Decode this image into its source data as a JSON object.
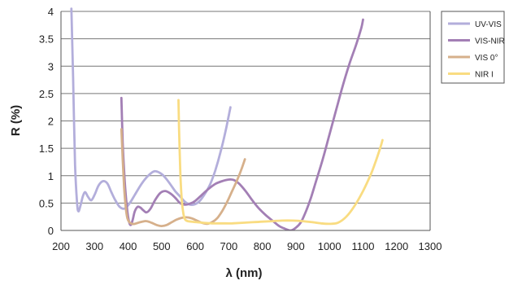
{
  "chart_data": {
    "type": "line",
    "title": "",
    "xlabel": "λ (nm)",
    "ylabel": "R (%)",
    "xlim": [
      200,
      1300
    ],
    "ylim": [
      0,
      4
    ],
    "x_ticks": [
      "200",
      "300",
      "400",
      "500",
      "600",
      "700",
      "800",
      "900",
      "1000",
      "1100",
      "1200",
      "1300"
    ],
    "y_ticks": [
      "0",
      "0.5",
      "1",
      "1.5",
      "2",
      "2.5",
      "3",
      "3.5",
      "4"
    ],
    "grid": "horizontal",
    "legend_position": "right",
    "series": [
      {
        "name": "UV-VIS",
        "color": "#b3aedb",
        "points": [
          [
            231,
            4.05
          ],
          [
            236,
            2.8
          ],
          [
            242,
            1.2
          ],
          [
            248,
            0.5
          ],
          [
            252,
            0.35
          ],
          [
            258,
            0.45
          ],
          [
            265,
            0.62
          ],
          [
            272,
            0.7
          ],
          [
            280,
            0.62
          ],
          [
            290,
            0.55
          ],
          [
            300,
            0.65
          ],
          [
            312,
            0.82
          ],
          [
            325,
            0.9
          ],
          [
            338,
            0.86
          ],
          [
            350,
            0.7
          ],
          [
            362,
            0.55
          ],
          [
            375,
            0.43
          ],
          [
            390,
            0.4
          ],
          [
            405,
            0.5
          ],
          [
            420,
            0.65
          ],
          [
            440,
            0.85
          ],
          [
            460,
            1.0
          ],
          [
            478,
            1.08
          ],
          [
            495,
            1.05
          ],
          [
            510,
            0.97
          ],
          [
            525,
            0.85
          ],
          [
            540,
            0.72
          ],
          [
            555,
            0.62
          ],
          [
            570,
            0.52
          ],
          [
            585,
            0.47
          ],
          [
            600,
            0.48
          ],
          [
            615,
            0.55
          ],
          [
            630,
            0.68
          ],
          [
            645,
            0.85
          ],
          [
            660,
            1.1
          ],
          [
            675,
            1.42
          ],
          [
            690,
            1.8
          ],
          [
            700,
            2.1
          ],
          [
            705,
            2.25
          ]
        ]
      },
      {
        "name": "VIS-NIR",
        "color": "#a37fb5",
        "points": [
          [
            380,
            2.42
          ],
          [
            384,
            1.6
          ],
          [
            390,
            0.9
          ],
          [
            396,
            0.45
          ],
          [
            402,
            0.18
          ],
          [
            408,
            0.1
          ],
          [
            414,
            0.2
          ],
          [
            420,
            0.35
          ],
          [
            428,
            0.43
          ],
          [
            436,
            0.42
          ],
          [
            445,
            0.37
          ],
          [
            455,
            0.33
          ],
          [
            467,
            0.4
          ],
          [
            480,
            0.55
          ],
          [
            495,
            0.68
          ],
          [
            510,
            0.72
          ],
          [
            525,
            0.68
          ],
          [
            540,
            0.6
          ],
          [
            555,
            0.5
          ],
          [
            570,
            0.47
          ],
          [
            585,
            0.49
          ],
          [
            600,
            0.54
          ],
          [
            620,
            0.65
          ],
          [
            640,
            0.76
          ],
          [
            660,
            0.85
          ],
          [
            680,
            0.9
          ],
          [
            700,
            0.93
          ],
          [
            715,
            0.92
          ],
          [
            730,
            0.86
          ],
          [
            750,
            0.72
          ],
          [
            770,
            0.55
          ],
          [
            790,
            0.4
          ],
          [
            810,
            0.28
          ],
          [
            830,
            0.18
          ],
          [
            850,
            0.08
          ],
          [
            868,
            0.03
          ],
          [
            885,
            0.0
          ],
          [
            900,
            0.05
          ],
          [
            915,
            0.15
          ],
          [
            930,
            0.35
          ],
          [
            945,
            0.6
          ],
          [
            960,
            0.9
          ],
          [
            980,
            1.3
          ],
          [
            1000,
            1.75
          ],
          [
            1020,
            2.2
          ],
          [
            1040,
            2.65
          ],
          [
            1060,
            3.05
          ],
          [
            1080,
            3.4
          ],
          [
            1095,
            3.7
          ],
          [
            1100,
            3.85
          ]
        ]
      },
      {
        "name": "VIS 0°",
        "color": "#d6b08b",
        "points": [
          [
            380,
            1.85
          ],
          [
            384,
            1.3
          ],
          [
            388,
            0.8
          ],
          [
            393,
            0.42
          ],
          [
            398,
            0.22
          ],
          [
            404,
            0.15
          ],
          [
            412,
            0.12
          ],
          [
            420,
            0.12
          ],
          [
            430,
            0.14
          ],
          [
            442,
            0.16
          ],
          [
            455,
            0.17
          ],
          [
            470,
            0.14
          ],
          [
            485,
            0.1
          ],
          [
            500,
            0.08
          ],
          [
            515,
            0.1
          ],
          [
            530,
            0.15
          ],
          [
            545,
            0.2
          ],
          [
            560,
            0.23
          ],
          [
            575,
            0.24
          ],
          [
            590,
            0.22
          ],
          [
            605,
            0.18
          ],
          [
            620,
            0.14
          ],
          [
            635,
            0.12
          ],
          [
            650,
            0.15
          ],
          [
            665,
            0.22
          ],
          [
            680,
            0.35
          ],
          [
            695,
            0.52
          ],
          [
            710,
            0.72
          ],
          [
            725,
            0.92
          ],
          [
            738,
            1.12
          ],
          [
            748,
            1.3
          ]
        ]
      },
      {
        "name": "NIR I",
        "color": "#f9dc81",
        "points": [
          [
            550,
            2.38
          ],
          [
            552,
            1.8
          ],
          [
            556,
            1.0
          ],
          [
            560,
            0.55
          ],
          [
            565,
            0.3
          ],
          [
            570,
            0.2
          ],
          [
            578,
            0.17
          ],
          [
            590,
            0.16
          ],
          [
            605,
            0.15
          ],
          [
            625,
            0.14
          ],
          [
            650,
            0.13
          ],
          [
            680,
            0.13
          ],
          [
            710,
            0.13
          ],
          [
            740,
            0.14
          ],
          [
            770,
            0.15
          ],
          [
            800,
            0.16
          ],
          [
            830,
            0.17
          ],
          [
            860,
            0.18
          ],
          [
            890,
            0.18
          ],
          [
            920,
            0.17
          ],
          [
            950,
            0.15
          ],
          [
            975,
            0.13
          ],
          [
            1000,
            0.12
          ],
          [
            1025,
            0.14
          ],
          [
            1050,
            0.25
          ],
          [
            1075,
            0.45
          ],
          [
            1100,
            0.72
          ],
          [
            1125,
            1.05
          ],
          [
            1140,
            1.3
          ],
          [
            1152,
            1.52
          ],
          [
            1158,
            1.65
          ]
        ]
      }
    ]
  }
}
